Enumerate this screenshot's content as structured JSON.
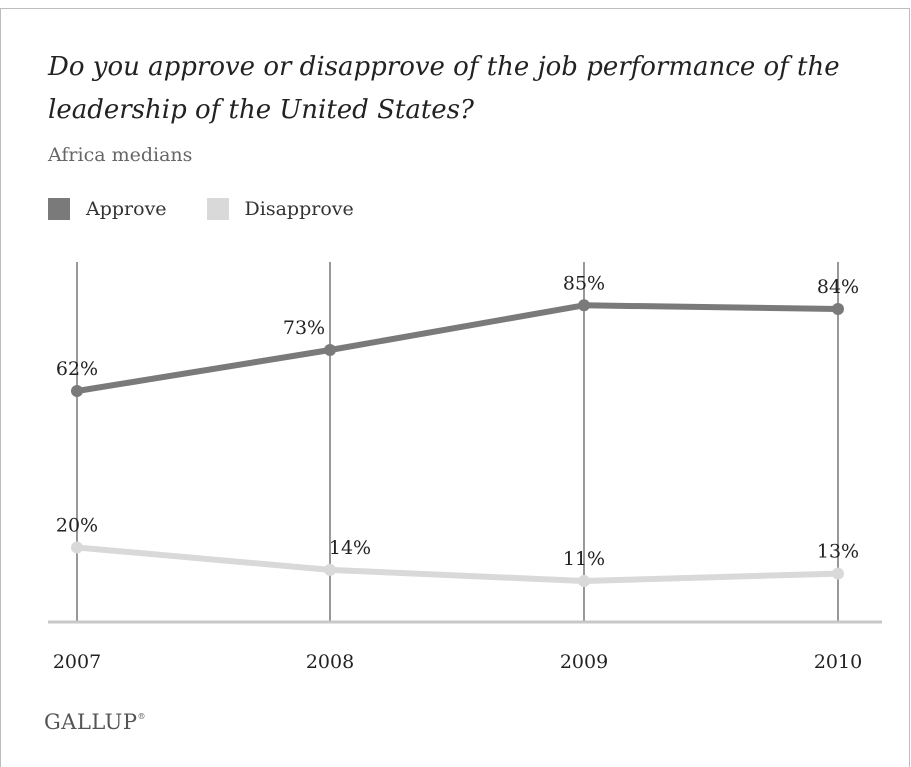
{
  "title": "Do you approve or disapprove of the job performance of the leadership of the United States?",
  "subtitle": "Africa medians",
  "logo": "GALLUP",
  "chart_data": {
    "type": "line",
    "x": [
      "2007",
      "2008",
      "2009",
      "2010"
    ],
    "ylim": [
      0,
      100
    ],
    "grid": "vertical",
    "legend": "top-left",
    "series": [
      {
        "name": "Approve",
        "values": [
          62,
          73,
          85,
          84
        ],
        "labels": [
          "62%",
          "73%",
          "85%",
          "84%"
        ],
        "color": "#7a7a7a"
      },
      {
        "name": "Disapprove",
        "values": [
          20,
          14,
          11,
          13
        ],
        "labels": [
          "20%",
          "14%",
          "11%",
          "13%"
        ],
        "color": "#d9d9d9"
      }
    ]
  }
}
